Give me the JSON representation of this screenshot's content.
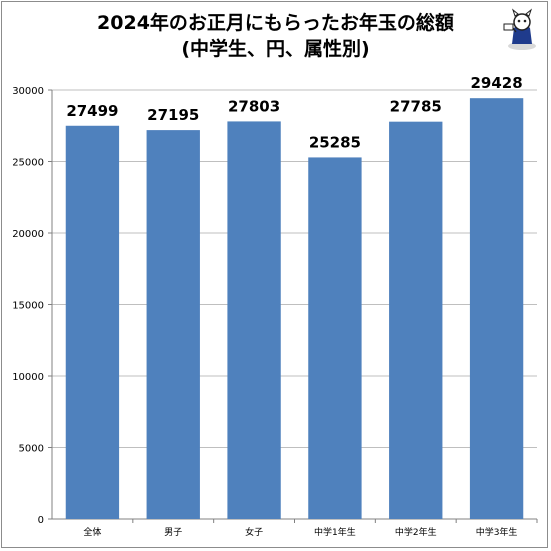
{
  "header": {
    "title_line1": "2024年のお正月にもらったお年玉の総額",
    "title_line2": "(中学生、円、属性別)"
  },
  "mascot": {
    "icon": "mascot-logo-icon"
  },
  "colors": {
    "bar": "#4f81bd",
    "gridline": "#bfbfbf",
    "axis": "#808080"
  },
  "chart_data": {
    "type": "bar",
    "title": "2024年のお正月にもらったお年玉の総額(中学生、円、属性別)",
    "categories": [
      "全体",
      "男子",
      "女子",
      "中学1年生",
      "中学2年生",
      "中学3年生"
    ],
    "values": [
      27499,
      27195,
      27803,
      25285,
      27785,
      29428
    ],
    "data_labels": [
      "27499",
      "27195",
      "27803",
      "25285",
      "27785",
      "29428"
    ],
    "yticks": [
      0,
      5000,
      10000,
      15000,
      20000,
      25000,
      30000
    ],
    "ytick_labels": [
      "0",
      "5000",
      "10000",
      "15000",
      "20000",
      "25000",
      "30000"
    ],
    "ylim": [
      0,
      30000
    ],
    "grid": true,
    "legend": "none"
  }
}
